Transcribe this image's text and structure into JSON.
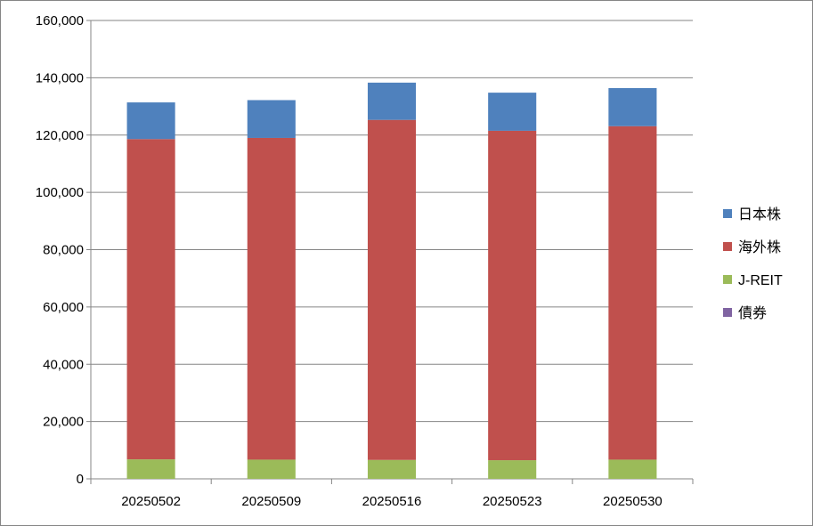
{
  "chart_data": {
    "type": "bar",
    "stacked": true,
    "categories": [
      "20250502",
      "20250509",
      "20250516",
      "20250523",
      "20250530"
    ],
    "series": [
      {
        "name": "債券",
        "color": "#8064A2",
        "values": [
          0,
          0,
          0,
          0,
          0
        ]
      },
      {
        "name": "J-REIT",
        "color": "#9BBB59",
        "values": [
          6800,
          6700,
          6600,
          6500,
          6700
        ]
      },
      {
        "name": "海外株",
        "color": "#C0504D",
        "values": [
          111800,
          112300,
          118700,
          115000,
          116400
        ]
      },
      {
        "name": "日本株",
        "color": "#4F81BD",
        "values": [
          12800,
          13200,
          13000,
          13300,
          13300
        ]
      }
    ],
    "legend_order": [
      "日本株",
      "海外株",
      "J-REIT",
      "債券"
    ],
    "ylim": [
      0,
      160000
    ],
    "yticks": [
      0,
      20000,
      40000,
      60000,
      80000,
      100000,
      120000,
      140000,
      160000
    ],
    "ytick_labels": [
      "0",
      "20,000",
      "40,000",
      "60,000",
      "80,000",
      "100,000",
      "120,000",
      "140,000",
      "160,000"
    ],
    "grid": true,
    "legend_position": "right"
  }
}
